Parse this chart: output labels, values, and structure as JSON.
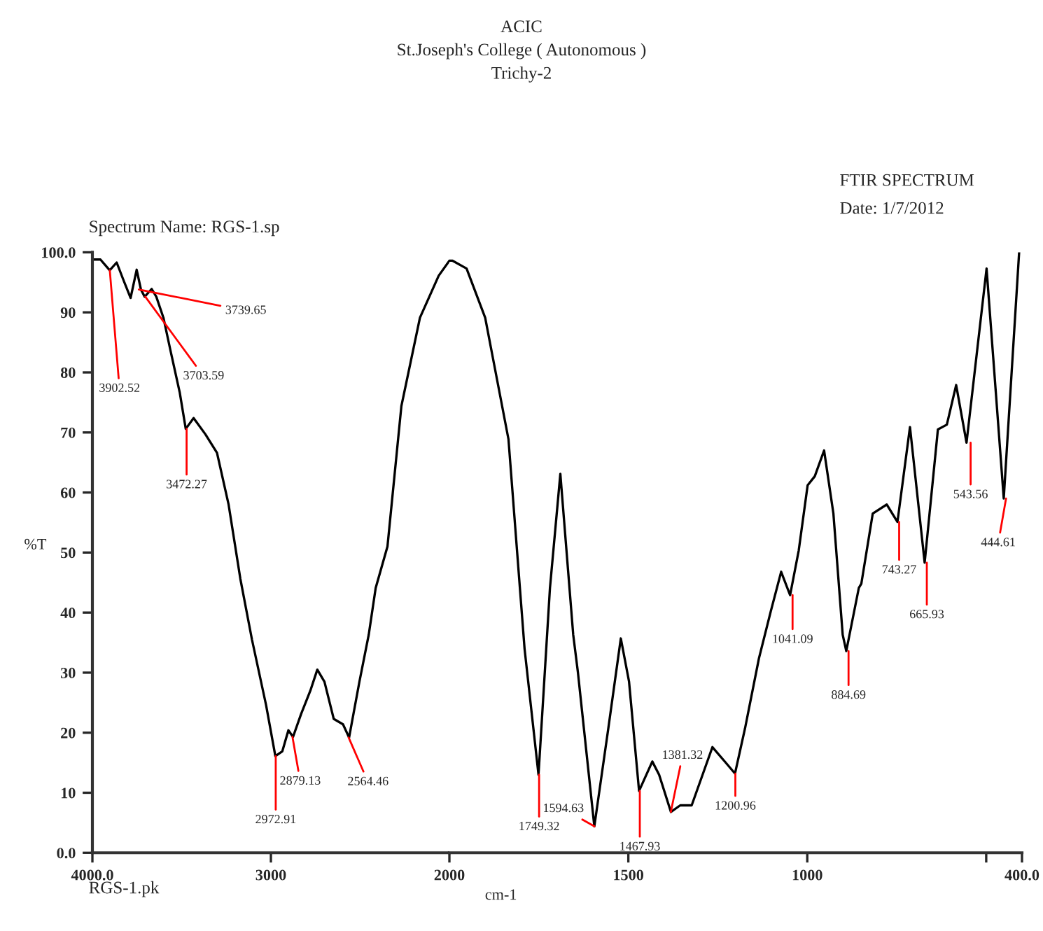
{
  "chart_data": [
    {
      "type": "line",
      "ylabel": "%T",
      "grid": false,
      "legend": false,
      "marker": "none",
      "x": [
        3995,
        3955,
        3903,
        3864,
        3825,
        3786,
        3752,
        3728,
        3707,
        3668,
        3642,
        3602,
        3563,
        3511,
        3477,
        3433,
        3367,
        3302,
        3237,
        3171,
        3106,
        3027,
        2975,
        2936,
        2902,
        2876,
        2831,
        2779,
        2740,
        2700,
        2648,
        2596,
        2562,
        2504,
        2452,
        2413,
        2347,
        2269,
        2165,
        2060,
        2000
      ],
      "series": [
        {
          "color": "#000000",
          "values": [
            98.8,
            98.8,
            97.0,
            98.3,
            95.3,
            92.4,
            97.1,
            93.8,
            92.6,
            93.9,
            92.6,
            89.1,
            83.7,
            76.7,
            70.6,
            72.4,
            69.7,
            66.6,
            58.0,
            45.6,
            35.5,
            24.6,
            16.1,
            16.9,
            20.4,
            19.3,
            23.1,
            27.0,
            30.5,
            28.5,
            22.3,
            21.4,
            19.2,
            28.5,
            36.3,
            44.1,
            51.0,
            74.4,
            89.1,
            96.1,
            98.6
          ]
        }
      ],
      "xlim": [
        4000,
        2000
      ],
      "ylim": [
        0,
        100
      ],
      "xticks": [
        {
          "value": 4000,
          "label": "4000.0"
        },
        3000,
        2000
      ],
      "yticks": [
        {
          "value": 0,
          "label": "0.0"
        },
        10,
        20,
        30,
        40,
        50,
        60,
        70,
        80,
        90,
        {
          "value": 100,
          "label": "100.0"
        }
      ],
      "line_style": "solid",
      "annotations": [
        "ACIC",
        "St.Joseph's College ( Autonomous )",
        "Trichy-2",
        {
          "text": "3902.52",
          "x": 3902.52,
          "y": 97.0
        },
        {
          "text": "3739.65",
          "x": 3739.65,
          "y": 93.8
        },
        {
          "text": "3703.59",
          "x": 3703.59,
          "y": 92.6
        },
        {
          "text": "3472.27",
          "x": 3472.27,
          "y": 70.6
        },
        {
          "text": "2972.91",
          "x": 2972.91,
          "y": 16.1
        },
        {
          "text": "2879.13",
          "x": 2879.13,
          "y": 19.3
        },
        {
          "text": "2564.46",
          "x": 2564.46,
          "y": 19.2
        },
        "FTIR SPECTRUM",
        "Date: 1/7/2012",
        "Spectrum Name: RGS-1.sp",
        "RGS-1.pk"
      ]
    },
    {
      "type": "line",
      "xlabel": "cm-1",
      "grid": false,
      "legend": false,
      "marker": "none",
      "x": [
        2000,
        1991,
        1952,
        1900,
        1835,
        1790,
        1751,
        1719,
        1690,
        1654,
        1641,
        1595,
        1556,
        1521,
        1498,
        1470,
        1433,
        1414,
        1381,
        1355,
        1323,
        1265,
        1232,
        1202,
        1174,
        1135,
        1102,
        1073,
        1048,
        1024,
        999,
        979,
        953,
        927,
        901,
        891,
        856,
        849,
        817,
        778,
        748,
        713,
        672,
        635,
        610,
        584,
        555,
        499,
        451,
        408
      ],
      "series": [
        {
          "color": "#000000",
          "values": [
            98.6,
            98.6,
            97.3,
            89.1,
            68.9,
            34.0,
            13.0,
            44.1,
            63.1,
            36.3,
            30.1,
            4.4,
            20.7,
            35.7,
            28.5,
            10.3,
            15.2,
            13.0,
            6.8,
            7.9,
            7.9,
            17.6,
            15.3,
            13.2,
            20.7,
            32.4,
            40.2,
            46.8,
            42.9,
            50.3,
            61.2,
            62.7,
            67.0,
            56.5,
            36.3,
            33.6,
            44.1,
            44.8,
            56.5,
            58.0,
            55.1,
            70.9,
            48.3,
            70.5,
            71.3,
            77.9,
            68.3,
            97.3,
            59.0,
            100.0
          ]
        }
      ],
      "xlim": [
        2000,
        400
      ],
      "ylim": [
        0,
        100
      ],
      "xticks": [
        1500,
        1000,
        {
          "value": 500,
          "label": null
        },
        {
          "value": 400,
          "label": "400.0"
        }
      ],
      "tick_labels": "x",
      "line_style": "solid",
      "annotations": [
        {
          "text": "1749.32",
          "x": 1749.32,
          "y": 13.0
        },
        {
          "text": "1594.63",
          "x": 1594.63,
          "y": 4.4
        },
        {
          "text": "1467.93",
          "x": 1467.93,
          "y": 10.3
        },
        {
          "text": "1381.32",
          "x": 1381.32,
          "y": 6.8
        },
        {
          "text": "1200.96",
          "x": 1200.96,
          "y": 13.2
        },
        {
          "text": "1041.09",
          "x": 1041.09,
          "y": 42.9
        },
        {
          "text": "884.69",
          "x": 884.69,
          "y": 33.6
        },
        {
          "text": "743.27",
          "x": 743.27,
          "y": 55.1
        },
        {
          "text": "665.93",
          "x": 665.93,
          "y": 48.3
        },
        {
          "text": "543.56",
          "x": 543.56,
          "y": 68.3
        },
        {
          "text": "444.61",
          "x": 444.61,
          "y": 59.0
        }
      ]
    }
  ]
}
